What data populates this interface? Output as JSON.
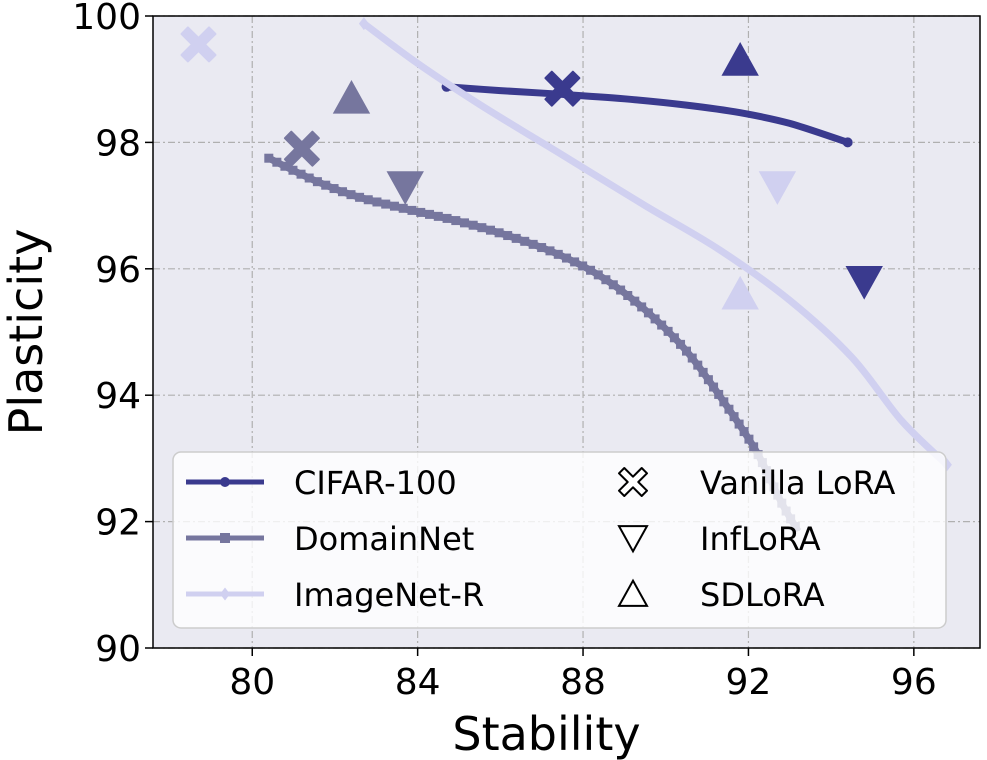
{
  "chart_data": {
    "type": "line",
    "xlabel": "Stability",
    "ylabel": "Plasticity",
    "xlim": [
      77.6,
      97.6
    ],
    "ylim": [
      90,
      100
    ],
    "xticks": [
      80,
      84,
      88,
      92,
      96
    ],
    "yticks": [
      90,
      92,
      94,
      96,
      98,
      100
    ],
    "grid": true,
    "legend_position": "bottom-center",
    "series": [
      {
        "name": "CIFAR-100",
        "color": "#3a3a8e",
        "marker": "circle",
        "points": [
          [
            84.7,
            98.88
          ],
          [
            86.0,
            98.82
          ],
          [
            87.5,
            98.76
          ],
          [
            89.0,
            98.69
          ],
          [
            90.5,
            98.59
          ],
          [
            91.8,
            98.47
          ],
          [
            93.0,
            98.3
          ],
          [
            94.4,
            98.0
          ]
        ]
      },
      {
        "name": "DomainNet",
        "color": "#76769e",
        "marker": "square",
        "points": [
          [
            80.4,
            97.75
          ],
          [
            81.5,
            97.4
          ],
          [
            82.5,
            97.15
          ],
          [
            83.7,
            96.95
          ],
          [
            85.0,
            96.75
          ],
          [
            86.3,
            96.5
          ],
          [
            87.5,
            96.2
          ],
          [
            88.5,
            95.85
          ],
          [
            89.5,
            95.35
          ],
          [
            90.5,
            94.7
          ],
          [
            91.4,
            93.9
          ],
          [
            92.2,
            93.1
          ],
          [
            92.8,
            92.3
          ],
          [
            93.2,
            91.85
          ]
        ]
      },
      {
        "name": "ImageNet-R",
        "color": "#d0d0f0",
        "marker": "diamond",
        "points": [
          [
            82.7,
            99.88
          ],
          [
            84.0,
            99.25
          ],
          [
            85.5,
            98.6
          ],
          [
            87.5,
            97.8
          ],
          [
            89.5,
            97.0
          ],
          [
            91.3,
            96.3
          ],
          [
            93.0,
            95.5
          ],
          [
            94.5,
            94.6
          ],
          [
            95.7,
            93.6
          ],
          [
            96.8,
            92.9
          ]
        ]
      }
    ],
    "method_markers": [
      {
        "method": "Vanilla LoRA",
        "shape": "x",
        "dataset": "CIFAR-100",
        "x": 87.5,
        "y": 98.85
      },
      {
        "method": "Vanilla LoRA",
        "shape": "x",
        "dataset": "DomainNet",
        "x": 81.2,
        "y": 97.9
      },
      {
        "method": "Vanilla LoRA",
        "shape": "x",
        "dataset": "ImageNet-R",
        "x": 78.7,
        "y": 99.55
      },
      {
        "method": "InfLoRA",
        "shape": "triangle-down",
        "dataset": "CIFAR-100",
        "x": 94.8,
        "y": 95.8
      },
      {
        "method": "InfLoRA",
        "shape": "triangle-down",
        "dataset": "DomainNet",
        "x": 83.7,
        "y": 97.3
      },
      {
        "method": "InfLoRA",
        "shape": "triangle-down",
        "dataset": "ImageNet-R",
        "x": 92.7,
        "y": 97.3
      },
      {
        "method": "SDLoRA",
        "shape": "triangle-up",
        "dataset": "CIFAR-100",
        "x": 91.8,
        "y": 99.3
      },
      {
        "method": "SDLoRA",
        "shape": "triangle-up",
        "dataset": "DomainNet",
        "x": 82.4,
        "y": 98.7
      },
      {
        "method": "SDLoRA",
        "shape": "triangle-up",
        "dataset": "ImageNet-R",
        "x": 91.8,
        "y": 95.6
      }
    ],
    "legend": {
      "datasets": [
        "CIFAR-100",
        "DomainNet",
        "ImageNet-R"
      ],
      "methods": [
        {
          "label": "Vanilla LoRA",
          "shape": "x"
        },
        {
          "label": "InfLoRA",
          "shape": "triangle-down"
        },
        {
          "label": "SDLoRA",
          "shape": "triangle-up"
        }
      ]
    }
  }
}
